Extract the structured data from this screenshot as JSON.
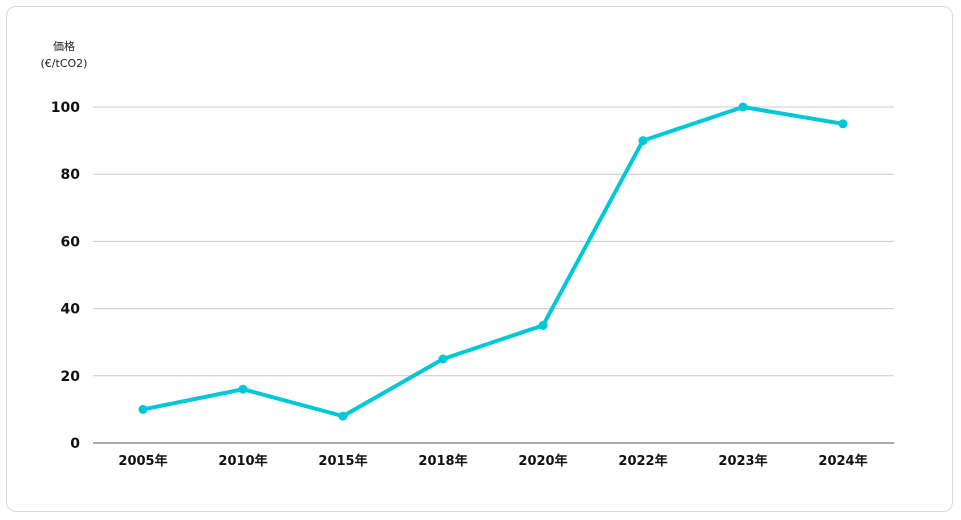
{
  "chart_data": {
    "type": "line",
    "ylabel_line1": "価格",
    "ylabel_line2": "(€/tCO2)",
    "categories": [
      "2005年",
      "2010年",
      "2015年",
      "2018年",
      "2020年",
      "2022年",
      "2023年",
      "2024年"
    ],
    "series": [
      {
        "values": [
          10,
          16,
          8,
          25,
          35,
          90,
          100,
          95
        ]
      }
    ],
    "ylim": [
      0,
      100
    ],
    "yticks": [
      0,
      20,
      40,
      60,
      80,
      100
    ],
    "grid": true,
    "line_color": "#00c8d7",
    "grid_color": "#cccccc"
  }
}
